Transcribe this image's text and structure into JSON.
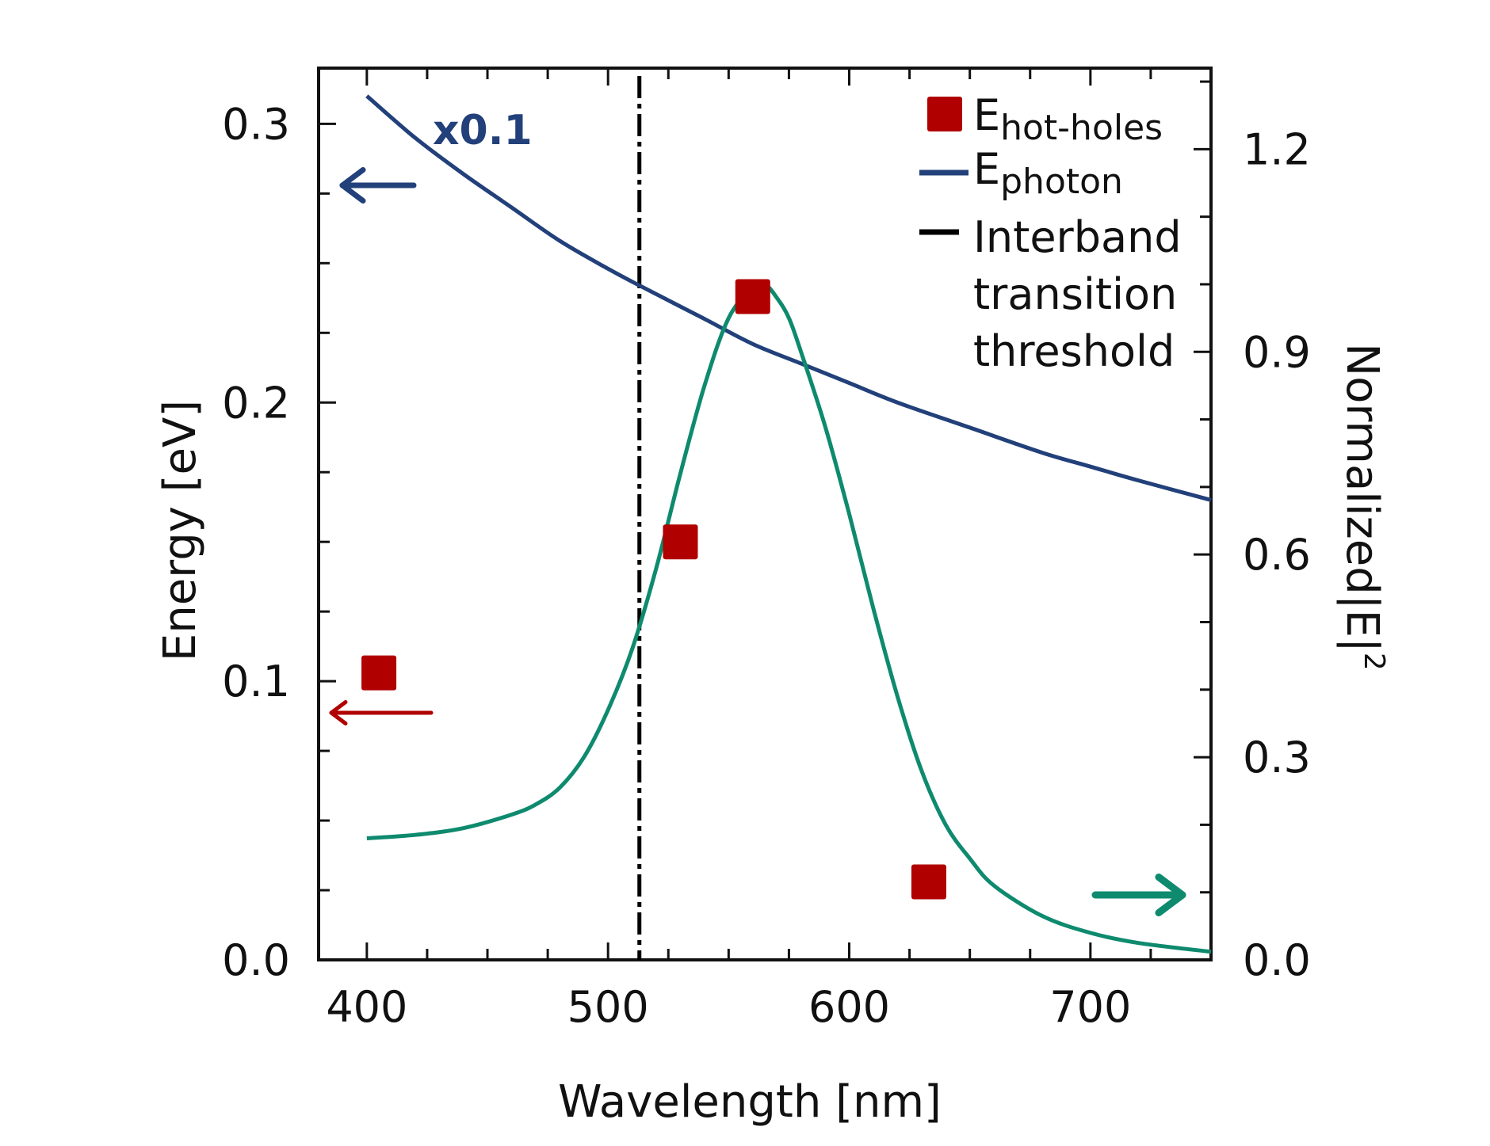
{
  "chart_data": {
    "type": "line",
    "xlabel": "Wavelength [nm]",
    "ylabel_left": "Energy [eV]",
    "ylabel_right": "Normalized|E|",
    "ylabel_right_sup": "2",
    "xlim": [
      380,
      750
    ],
    "ylim_left": [
      0.0,
      0.32
    ],
    "ylim_right": [
      0.0,
      1.32
    ],
    "x_ticks": [
      400,
      500,
      600,
      700
    ],
    "x_tick_labels": [
      "400",
      "500",
      "600",
      "700"
    ],
    "y_left_ticks": [
      0.0,
      0.1,
      0.2,
      0.3
    ],
    "y_left_tick_labels": [
      "0.0",
      "0.1",
      "0.2",
      "0.3"
    ],
    "y_right_ticks": [
      0.0,
      0.3,
      0.6,
      0.9,
      1.2
    ],
    "y_right_tick_labels": [
      "0.0",
      "0.3",
      "0.6",
      "0.9",
      "1.2"
    ],
    "threshold_x": 513,
    "annotation": "x0.1",
    "colors": {
      "photon": "#22407a",
      "field": "#0e8a6e",
      "hot_holes": "#b00000",
      "threshold": "#000000"
    },
    "legend": {
      "position": "top-right",
      "hot_holes_base": "E",
      "hot_holes_sub": "hot-holes",
      "photon_base": "E",
      "photon_sub": "photon",
      "threshold_lines": [
        "Interband",
        "transition",
        "threshold"
      ]
    },
    "series": [
      {
        "key": "hot_holes",
        "type": "scatter",
        "axis": "left",
        "x": [
          405,
          530,
          560,
          633
        ],
        "y": [
          0.103,
          0.15,
          0.238,
          0.028
        ]
      },
      {
        "key": "photon",
        "type": "line",
        "axis": "left",
        "x": [
          400,
          420,
          440,
          460,
          480,
          500,
          513,
          540,
          560,
          580,
          600,
          620,
          650,
          680,
          700,
          720,
          750
        ],
        "y": [
          0.31,
          0.295,
          0.282,
          0.27,
          0.258,
          0.248,
          0.242,
          0.23,
          0.221,
          0.214,
          0.207,
          0.2,
          0.191,
          0.182,
          0.177,
          0.172,
          0.165
        ]
      },
      {
        "key": "field",
        "type": "line",
        "axis": "right",
        "x": [
          400,
          420,
          440,
          460,
          470,
          480,
          490,
          500,
          510,
          520,
          530,
          540,
          550,
          560,
          565,
          570,
          575,
          580,
          590,
          600,
          610,
          620,
          630,
          640,
          650,
          660,
          680,
          700,
          720,
          750
        ],
        "y": [
          0.18,
          0.185,
          0.195,
          0.215,
          0.23,
          0.255,
          0.3,
          0.37,
          0.46,
          0.58,
          0.72,
          0.85,
          0.95,
          0.995,
          1.0,
          0.98,
          0.95,
          0.9,
          0.79,
          0.66,
          0.52,
          0.39,
          0.28,
          0.2,
          0.15,
          0.11,
          0.065,
          0.04,
          0.025,
          0.012
        ]
      }
    ]
  }
}
